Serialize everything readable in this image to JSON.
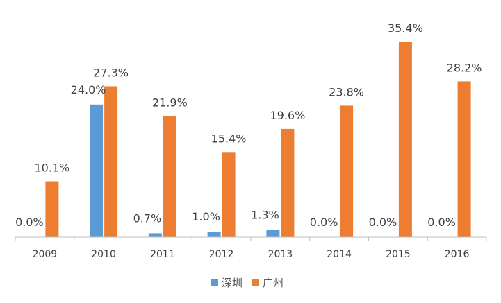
{
  "chart_data": {
    "type": "bar",
    "title": "",
    "xlabel": "",
    "ylabel": "",
    "categories": [
      "2009",
      "2010",
      "2011",
      "2012",
      "2013",
      "2014",
      "2015",
      "2016"
    ],
    "series": [
      {
        "name": "深圳",
        "color": "#5B9BD5",
        "values": [
          0.0,
          24.0,
          0.7,
          1.0,
          1.3,
          0.0,
          0.0,
          0.0
        ],
        "labels": [
          "0.0%",
          "24.0%",
          "0.7%",
          "1.0%",
          "1.3%",
          "0.0%",
          "0.0%",
          "0.0%"
        ]
      },
      {
        "name": "广州",
        "color": "#ED7D31",
        "values": [
          10.1,
          27.3,
          21.9,
          15.4,
          19.6,
          23.8,
          35.4,
          28.2
        ],
        "labels": [
          "10.1%",
          "27.3%",
          "21.9%",
          "15.4%",
          "19.6%",
          "23.8%",
          "35.4%",
          "28.2%"
        ]
      }
    ],
    "unit": "%",
    "grid": false,
    "legend_position": "bottom",
    "axis_color": "#BFBFBF"
  }
}
